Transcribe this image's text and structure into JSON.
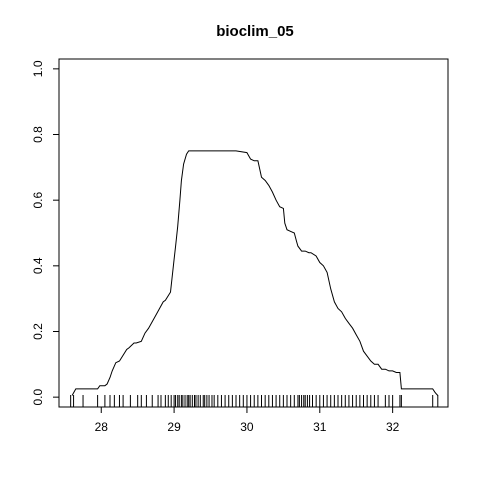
{
  "chart_data": {
    "type": "line",
    "title": "bioclim_05",
    "xlabel": "",
    "ylabel": "",
    "xlim": [
      27.42,
      32.76
    ],
    "ylim": [
      -0.03,
      1.03
    ],
    "x_ticks": [
      28,
      29,
      30,
      31,
      32
    ],
    "x_tick_labels": [
      "28",
      "29",
      "30",
      "31",
      "32"
    ],
    "y_ticks": [
      0.0,
      0.2,
      0.4,
      0.6,
      0.8,
      1.0
    ],
    "y_tick_labels": [
      "0.0",
      "0.2",
      "0.4",
      "0.6",
      "0.8",
      "1.0"
    ],
    "series": [
      {
        "x": [
          27.6,
          27.65,
          27.7,
          27.78,
          27.95,
          27.98,
          28.05,
          28.08,
          28.12,
          28.15,
          28.2,
          28.25,
          28.35,
          28.38,
          28.45,
          28.48,
          28.55,
          28.6,
          28.65,
          28.75,
          28.85,
          28.88,
          28.95,
          29.0,
          29.02,
          29.05,
          29.08,
          29.1,
          29.13,
          29.17,
          29.2,
          29.25,
          29.35,
          29.5,
          29.7,
          29.85,
          30.0,
          30.05,
          30.1,
          30.15,
          30.2,
          30.25,
          30.3,
          30.35,
          30.4,
          30.45,
          30.5,
          30.52,
          30.55,
          30.6,
          30.65,
          30.68,
          30.7,
          30.75,
          30.8,
          30.85,
          30.88,
          30.95,
          31.0,
          31.05,
          31.1,
          31.15,
          31.2,
          31.25,
          31.3,
          31.35,
          31.4,
          31.45,
          31.5,
          31.55,
          31.6,
          31.65,
          31.7,
          31.75,
          31.8,
          31.85,
          31.9,
          31.95,
          32.0,
          32.05,
          32.1,
          32.12,
          32.15,
          32.2,
          32.3,
          32.4,
          32.5,
          32.55,
          32.58,
          32.6,
          32.62
        ],
        "y": [
          0.005,
          0.025,
          0.025,
          0.025,
          0.025,
          0.035,
          0.035,
          0.04,
          0.06,
          0.08,
          0.105,
          0.11,
          0.145,
          0.15,
          0.165,
          0.165,
          0.17,
          0.195,
          0.21,
          0.25,
          0.29,
          0.295,
          0.32,
          0.42,
          0.46,
          0.52,
          0.6,
          0.66,
          0.71,
          0.74,
          0.75,
          0.75,
          0.75,
          0.75,
          0.75,
          0.75,
          0.745,
          0.725,
          0.72,
          0.72,
          0.67,
          0.66,
          0.645,
          0.625,
          0.6,
          0.58,
          0.575,
          0.53,
          0.51,
          0.505,
          0.5,
          0.475,
          0.46,
          0.445,
          0.445,
          0.44,
          0.44,
          0.43,
          0.41,
          0.4,
          0.38,
          0.33,
          0.29,
          0.27,
          0.26,
          0.24,
          0.225,
          0.21,
          0.19,
          0.17,
          0.14,
          0.125,
          0.11,
          0.1,
          0.1,
          0.085,
          0.085,
          0.08,
          0.08,
          0.075,
          0.075,
          0.025,
          0.025,
          0.025,
          0.025,
          0.025,
          0.025,
          0.025,
          0.015,
          0.01,
          0.005
        ]
      }
    ],
    "rug": [
      27.58,
      27.62,
      27.75,
      27.95,
      28.05,
      28.12,
      28.18,
      28.25,
      28.3,
      28.4,
      28.5,
      28.55,
      28.62,
      28.7,
      28.78,
      28.82,
      28.88,
      28.92,
      28.96,
      29.0,
      29.02,
      29.05,
      29.07,
      29.1,
      29.12,
      29.15,
      29.18,
      29.2,
      29.22,
      29.25,
      29.28,
      29.3,
      29.33,
      29.36,
      29.4,
      29.42,
      29.45,
      29.48,
      29.52,
      29.55,
      29.6,
      29.65,
      29.7,
      29.75,
      29.8,
      29.85,
      29.9,
      29.95,
      30.0,
      30.05,
      30.1,
      30.15,
      30.2,
      30.25,
      30.3,
      30.35,
      30.4,
      30.45,
      30.5,
      30.55,
      30.6,
      30.65,
      30.7,
      30.72,
      30.75,
      30.78,
      30.8,
      30.83,
      30.86,
      30.9,
      30.95,
      31.0,
      31.05,
      31.1,
      31.15,
      31.2,
      31.25,
      31.3,
      31.35,
      31.4,
      31.45,
      31.5,
      31.55,
      31.6,
      31.65,
      31.7,
      31.75,
      31.8,
      31.9,
      31.95,
      32.0,
      32.1,
      32.12,
      32.55,
      32.62
    ],
    "grid": false,
    "legend": "none"
  }
}
